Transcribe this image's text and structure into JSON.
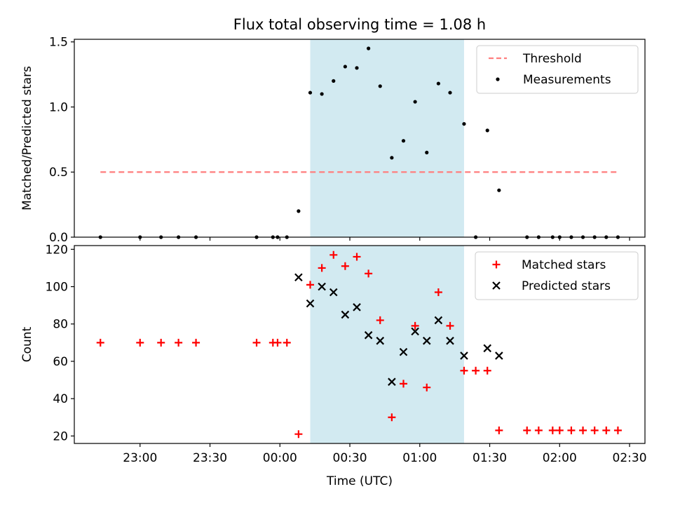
{
  "chart_data": {
    "type": "scatter",
    "title": "Flux total observing time = 1.08 h",
    "xlabel": "Time (UTC)",
    "x_tick_labels": [
      "23:00",
      "23:30",
      "00:00",
      "00:30",
      "01:00",
      "01:30",
      "02:00",
      "02:30"
    ],
    "x_tick_minutes": [
      0,
      30,
      60,
      90,
      120,
      150,
      180,
      210
    ],
    "x_range_minutes": [
      -28.2,
      216.6
    ],
    "shaded_interval_minutes": [
      73,
      139
    ],
    "shade_color": "#add8e6",
    "grid": false,
    "panels": [
      {
        "ylabel": "Matched/Predicted stars",
        "ylim": [
          0,
          1.52
        ],
        "y_ticks": [
          0.0,
          0.5,
          1.0,
          1.5
        ],
        "y_tick_labels": [
          "0.0",
          "0.5",
          "1.0",
          "1.5"
        ],
        "legend_position": "top-right",
        "series": [
          {
            "name": "Threshold",
            "kind": "line",
            "color": "#ff7f7f",
            "x": [
              -17,
              205
            ],
            "y": [
              0.5,
              0.5
            ]
          },
          {
            "name": "Measurements",
            "kind": "dot",
            "color": "#000000",
            "x": [
              -17,
              0,
              9,
              16.5,
              24,
              50,
              57,
              59,
              63,
              68,
              73,
              78,
              83,
              88,
              93,
              98,
              103,
              108,
              113,
              118,
              123,
              128,
              133,
              139,
              144,
              149,
              154,
              166,
              171,
              177,
              180,
              185,
              190,
              195,
              200,
              205
            ],
            "y": [
              0,
              0,
              0,
              0,
              0,
              0,
              0,
              0,
              0,
              0.2,
              1.11,
              1.1,
              1.2,
              1.31,
              1.3,
              1.45,
              1.16,
              0.61,
              0.74,
              1.04,
              0.65,
              1.18,
              1.11,
              0.87,
              0,
              0.82,
              0.36,
              0,
              0,
              0,
              0,
              0,
              0,
              0,
              0,
              0
            ]
          }
        ]
      },
      {
        "ylabel": "Count",
        "ylim": [
          16,
          122
        ],
        "y_ticks": [
          20,
          40,
          60,
          80,
          100,
          120
        ],
        "y_tick_labels": [
          "20",
          "40",
          "60",
          "80",
          "100",
          "120"
        ],
        "legend_position": "top-right",
        "series": [
          {
            "name": "Matched stars",
            "kind": "plus",
            "color": "#ff0000",
            "x": [
              -17,
              0,
              9,
              16.5,
              24,
              50,
              57,
              59,
              63,
              68,
              73,
              78,
              83,
              88,
              93,
              98,
              103,
              108,
              113,
              118,
              123,
              128,
              133,
              139,
              144,
              149,
              154,
              166,
              171,
              177,
              180,
              185,
              190,
              195,
              200,
              205
            ],
            "y": [
              70,
              70,
              70,
              70,
              70,
              70,
              70,
              70,
              70,
              21,
              101,
              110,
              117,
              111,
              116,
              107,
              82,
              30,
              48,
              79,
              46,
              97,
              79,
              55,
              55,
              55,
              23,
              23,
              23,
              23,
              23,
              23,
              23,
              23,
              23,
              23
            ]
          },
          {
            "name": "Predicted stars",
            "kind": "x",
            "color": "#000000",
            "x": [
              68,
              73,
              78,
              83,
              88,
              93,
              98,
              103,
              108,
              113,
              118,
              123,
              128,
              133,
              139,
              149,
              154
            ],
            "y": [
              105,
              91,
              100,
              97,
              85,
              89,
              74,
              71,
              49,
              65,
              76,
              71,
              82,
              71,
              63,
              67,
              63
            ]
          }
        ]
      }
    ]
  }
}
